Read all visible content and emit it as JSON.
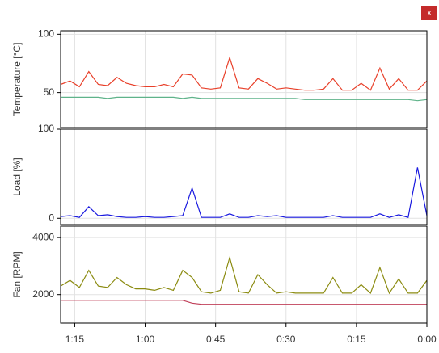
{
  "window": {
    "close_button": "x"
  },
  "chart_data": [
    {
      "type": "line",
      "ylabel": "Temperature [°C]",
      "ylim": [
        20,
        103
      ],
      "yticks": [
        50,
        100
      ],
      "xlim": [
        78,
        0
      ],
      "grid": true,
      "x": [
        78,
        76,
        74,
        72,
        70,
        68,
        66,
        64,
        62,
        60,
        58,
        56,
        54,
        52,
        50,
        48,
        46,
        44,
        42,
        40,
        38,
        36,
        34,
        32,
        30,
        28,
        26,
        24,
        22,
        20,
        18,
        16,
        14,
        12,
        10,
        8,
        6,
        4,
        2,
        0
      ],
      "series": [
        {
          "color": "#e8402a",
          "values": [
            57,
            60,
            55,
            68,
            57,
            56,
            63,
            58,
            56,
            55,
            55,
            57,
            55,
            66,
            65,
            54,
            53,
            54,
            80,
            54,
            53,
            62,
            58,
            53,
            54,
            53,
            52,
            52,
            53,
            62,
            52,
            52,
            58,
            52,
            71,
            53,
            62,
            52,
            52,
            60
          ]
        },
        {
          "color": "#5fb38a",
          "values": [
            46,
            46,
            46,
            46,
            46,
            45,
            46,
            46,
            46,
            46,
            46,
            46,
            46,
            45,
            46,
            45,
            45,
            45,
            45,
            45,
            45,
            45,
            45,
            45,
            45,
            45,
            44,
            44,
            44,
            44,
            44,
            44,
            44,
            44,
            44,
            44,
            44,
            44,
            43,
            44
          ]
        }
      ]
    },
    {
      "type": "line",
      "ylabel": "Load [%]",
      "ylim": [
        -7,
        100
      ],
      "yticks": [
        0,
        100
      ],
      "xlim": [
        78,
        0
      ],
      "grid": true,
      "x": [
        78,
        76,
        74,
        72,
        70,
        68,
        66,
        64,
        62,
        60,
        58,
        56,
        54,
        52,
        50,
        48,
        46,
        44,
        42,
        40,
        38,
        36,
        34,
        32,
        30,
        28,
        26,
        24,
        22,
        20,
        18,
        16,
        14,
        12,
        10,
        8,
        6,
        4,
        2,
        0
      ],
      "series": [
        {
          "color": "#1a1adf",
          "values": [
            2,
            3,
            1,
            13,
            3,
            4,
            2,
            1,
            1,
            2,
            1,
            1,
            2,
            3,
            34,
            1,
            1,
            1,
            5,
            1,
            1,
            3,
            2,
            3,
            1,
            1,
            1,
            1,
            1,
            3,
            1,
            1,
            1,
            1,
            5,
            1,
            4,
            1,
            57,
            3
          ]
        }
      ]
    },
    {
      "type": "line",
      "ylabel": "Fan [RPM]",
      "ylim": [
        1000,
        4400
      ],
      "yticks": [
        2000,
        4000
      ],
      "xlim": [
        78,
        0
      ],
      "grid": true,
      "xticks": [
        {
          "value": 75,
          "label": "1:15"
        },
        {
          "value": 60,
          "label": "1:00"
        },
        {
          "value": 45,
          "label": "0:45"
        },
        {
          "value": 30,
          "label": "0:30"
        },
        {
          "value": 15,
          "label": "0:15"
        },
        {
          "value": 0,
          "label": "0:00"
        }
      ],
      "x": [
        78,
        76,
        74,
        72,
        70,
        68,
        66,
        64,
        62,
        60,
        58,
        56,
        54,
        52,
        50,
        48,
        46,
        44,
        42,
        40,
        38,
        36,
        34,
        32,
        30,
        28,
        26,
        24,
        22,
        20,
        18,
        16,
        14,
        12,
        10,
        8,
        6,
        4,
        2,
        0
      ],
      "series": [
        {
          "color": "#8b8b10",
          "values": [
            2300,
            2500,
            2250,
            2850,
            2300,
            2250,
            2600,
            2350,
            2200,
            2200,
            2150,
            2250,
            2150,
            2850,
            2600,
            2100,
            2050,
            2150,
            3300,
            2100,
            2050,
            2700,
            2350,
            2050,
            2100,
            2050,
            2050,
            2050,
            2050,
            2600,
            2050,
            2050,
            2350,
            2050,
            2950,
            2050,
            2550,
            2050,
            2050,
            2500
          ]
        },
        {
          "color": "#c0405a",
          "values": [
            1800,
            1800,
            1800,
            1800,
            1800,
            1800,
            1800,
            1800,
            1800,
            1800,
            1800,
            1800,
            1800,
            1800,
            1700,
            1660,
            1660,
            1660,
            1660,
            1660,
            1660,
            1660,
            1660,
            1660,
            1660,
            1660,
            1660,
            1660,
            1660,
            1660,
            1660,
            1660,
            1660,
            1660,
            1660,
            1660,
            1660,
            1660,
            1660,
            1660
          ]
        }
      ]
    }
  ]
}
